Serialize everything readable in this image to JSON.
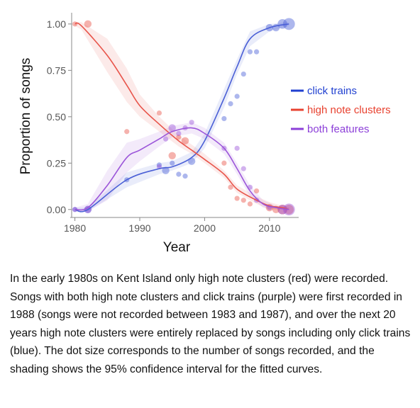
{
  "chart_data": {
    "type": "line",
    "xlabel": "Year",
    "ylabel": "Proportion of songs",
    "xlim": [
      1979.5,
      2014.5
    ],
    "ylim": [
      -0.02,
      1.03
    ],
    "x_ticks": [
      1980,
      1990,
      2000,
      2010
    ],
    "x_tick_labels": [
      "1980",
      "1990",
      "2000",
      "2010"
    ],
    "y_ticks": [
      0,
      0.25,
      0.5,
      0.75,
      1.0
    ],
    "y_tick_labels": [
      "0.00",
      "0.25",
      "0.50",
      "0.75",
      "1.00"
    ],
    "grid": false,
    "legend_position": "right",
    "series": [
      {
        "name": "click trains",
        "color": "#4a5fd6",
        "x": [
          1980,
          1982,
          1988,
          1993,
          1995,
          1998,
          2000,
          2003,
          2005,
          2007,
          2010,
          2013
        ],
        "y": [
          0.0,
          0.0,
          0.16,
          0.22,
          0.23,
          0.28,
          0.37,
          0.6,
          0.77,
          0.92,
          0.98,
          1.0
        ],
        "ci_lower": [
          -0.01,
          -0.01,
          0.12,
          0.19,
          0.21,
          0.25,
          0.33,
          0.55,
          0.73,
          0.88,
          0.96,
          0.99
        ],
        "ci_upper": [
          0.01,
          0.01,
          0.2,
          0.25,
          0.26,
          0.31,
          0.41,
          0.65,
          0.81,
          0.96,
          1.0,
          1.01
        ],
        "points": [
          {
            "x": 1980,
            "y": 0.0,
            "n": 1
          },
          {
            "x": 1982,
            "y": 0.0,
            "n": 2
          },
          {
            "x": 1988,
            "y": 0.16,
            "n": 1
          },
          {
            "x": 1993,
            "y": 0.24,
            "n": 1
          },
          {
            "x": 1994,
            "y": 0.21,
            "n": 2
          },
          {
            "x": 1995,
            "y": 0.25,
            "n": 1
          },
          {
            "x": 1996,
            "y": 0.19,
            "n": 1
          },
          {
            "x": 1997,
            "y": 0.18,
            "n": 1
          },
          {
            "x": 1998,
            "y": 0.26,
            "n": 2
          },
          {
            "x": 2003,
            "y": 0.49,
            "n": 1
          },
          {
            "x": 2004,
            "y": 0.57,
            "n": 1
          },
          {
            "x": 2005,
            "y": 0.61,
            "n": 1
          },
          {
            "x": 2006,
            "y": 0.73,
            "n": 1
          },
          {
            "x": 2007,
            "y": 0.85,
            "n": 1
          },
          {
            "x": 2008,
            "y": 0.85,
            "n": 1
          },
          {
            "x": 2010,
            "y": 0.98,
            "n": 2
          },
          {
            "x": 2011,
            "y": 0.98,
            "n": 2
          },
          {
            "x": 2012,
            "y": 1.0,
            "n": 3
          },
          {
            "x": 2013,
            "y": 1.0,
            "n": 4
          }
        ]
      },
      {
        "name": "high note clusters",
        "color": "#e8544a",
        "x": [
          1980,
          1981,
          1985,
          1988,
          1990,
          1993,
          1996,
          1998,
          2000,
          2003,
          2005,
          2008,
          2010,
          2012,
          2013
        ],
        "y": [
          1.0,
          0.99,
          0.83,
          0.67,
          0.56,
          0.46,
          0.37,
          0.32,
          0.27,
          0.19,
          0.11,
          0.05,
          0.02,
          0.01,
          0.0
        ],
        "ci_lower": [
          0.99,
          0.97,
          0.74,
          0.58,
          0.5,
          0.42,
          0.34,
          0.3,
          0.25,
          0.17,
          0.09,
          0.03,
          0.0,
          0.0,
          0.0
        ],
        "ci_upper": [
          1.01,
          1.01,
          0.92,
          0.76,
          0.62,
          0.5,
          0.4,
          0.35,
          0.3,
          0.21,
          0.13,
          0.07,
          0.04,
          0.02,
          0.01
        ],
        "points": [
          {
            "x": 1980,
            "y": 1.0,
            "n": 1
          },
          {
            "x": 1982,
            "y": 1.0,
            "n": 2
          },
          {
            "x": 1988,
            "y": 0.42,
            "n": 1
          },
          {
            "x": 1993,
            "y": 0.52,
            "n": 1
          },
          {
            "x": 1995,
            "y": 0.29,
            "n": 2
          },
          {
            "x": 1996,
            "y": 0.39,
            "n": 1
          },
          {
            "x": 1997,
            "y": 0.37,
            "n": 2
          },
          {
            "x": 2003,
            "y": 0.25,
            "n": 1
          },
          {
            "x": 2004,
            "y": 0.12,
            "n": 1
          },
          {
            "x": 2005,
            "y": 0.06,
            "n": 1
          },
          {
            "x": 2006,
            "y": 0.05,
            "n": 1
          },
          {
            "x": 2007,
            "y": 0.03,
            "n": 1
          },
          {
            "x": 2008,
            "y": 0.1,
            "n": 1
          },
          {
            "x": 2010,
            "y": 0.01,
            "n": 2
          },
          {
            "x": 2011,
            "y": 0.0,
            "n": 2
          },
          {
            "x": 2012,
            "y": 0.0,
            "n": 3
          },
          {
            "x": 2013,
            "y": 0.0,
            "n": 3
          }
        ]
      },
      {
        "name": "both features",
        "color": "#9b55d9",
        "x": [
          1980,
          1982,
          1985,
          1988,
          1990,
          1993,
          1995,
          1998,
          2000,
          2003,
          2005,
          2007,
          2009,
          2011,
          2013
        ],
        "y": [
          0.0,
          0.01,
          0.13,
          0.28,
          0.32,
          0.38,
          0.42,
          0.44,
          0.41,
          0.33,
          0.22,
          0.1,
          0.03,
          0.01,
          0.0
        ],
        "ci_lower": [
          -0.01,
          -0.01,
          0.05,
          0.2,
          0.26,
          0.34,
          0.39,
          0.41,
          0.38,
          0.3,
          0.19,
          0.07,
          0.01,
          0.0,
          0.0
        ],
        "ci_upper": [
          0.01,
          0.03,
          0.21,
          0.36,
          0.38,
          0.42,
          0.45,
          0.47,
          0.44,
          0.36,
          0.25,
          0.13,
          0.05,
          0.02,
          0.01
        ],
        "points": [
          {
            "x": 1980,
            "y": 0.0,
            "n": 1
          },
          {
            "x": 1982,
            "y": 0.0,
            "n": 2
          },
          {
            "x": 1993,
            "y": 0.23,
            "n": 1
          },
          {
            "x": 1994,
            "y": 0.38,
            "n": 1
          },
          {
            "x": 1995,
            "y": 0.44,
            "n": 2
          },
          {
            "x": 1996,
            "y": 0.41,
            "n": 1
          },
          {
            "x": 1997,
            "y": 0.44,
            "n": 1
          },
          {
            "x": 1998,
            "y": 0.47,
            "n": 1
          },
          {
            "x": 2003,
            "y": 0.33,
            "n": 1
          },
          {
            "x": 2005,
            "y": 0.33,
            "n": 1
          },
          {
            "x": 2006,
            "y": 0.22,
            "n": 1
          },
          {
            "x": 2007,
            "y": 0.12,
            "n": 1
          },
          {
            "x": 2008,
            "y": 0.05,
            "n": 1
          },
          {
            "x": 2010,
            "y": 0.01,
            "n": 1
          },
          {
            "x": 2012,
            "y": 0.0,
            "n": 3
          },
          {
            "x": 2013,
            "y": 0.0,
            "n": 4
          }
        ]
      }
    ]
  },
  "legend": {
    "items": [
      {
        "label": "click trains",
        "color": "#1f3fd0"
      },
      {
        "label": "high note clusters",
        "color": "#e8412f"
      },
      {
        "label": "both features",
        "color": "#8c3fd8"
      }
    ]
  },
  "caption": "In the early 1980s on Kent Island only high note clusters (red) were recorded. Songs with both high note clusters and click trains (purple) were first recorded in 1988 (songs were not recorded between 1983 and 1987), and over the next 20 years high note clusters were entirely replaced by songs including only click trains (blue). The dot size corresponds to the number of songs recorded, and the shading shows the 95% confidence interval for the fitted curves."
}
